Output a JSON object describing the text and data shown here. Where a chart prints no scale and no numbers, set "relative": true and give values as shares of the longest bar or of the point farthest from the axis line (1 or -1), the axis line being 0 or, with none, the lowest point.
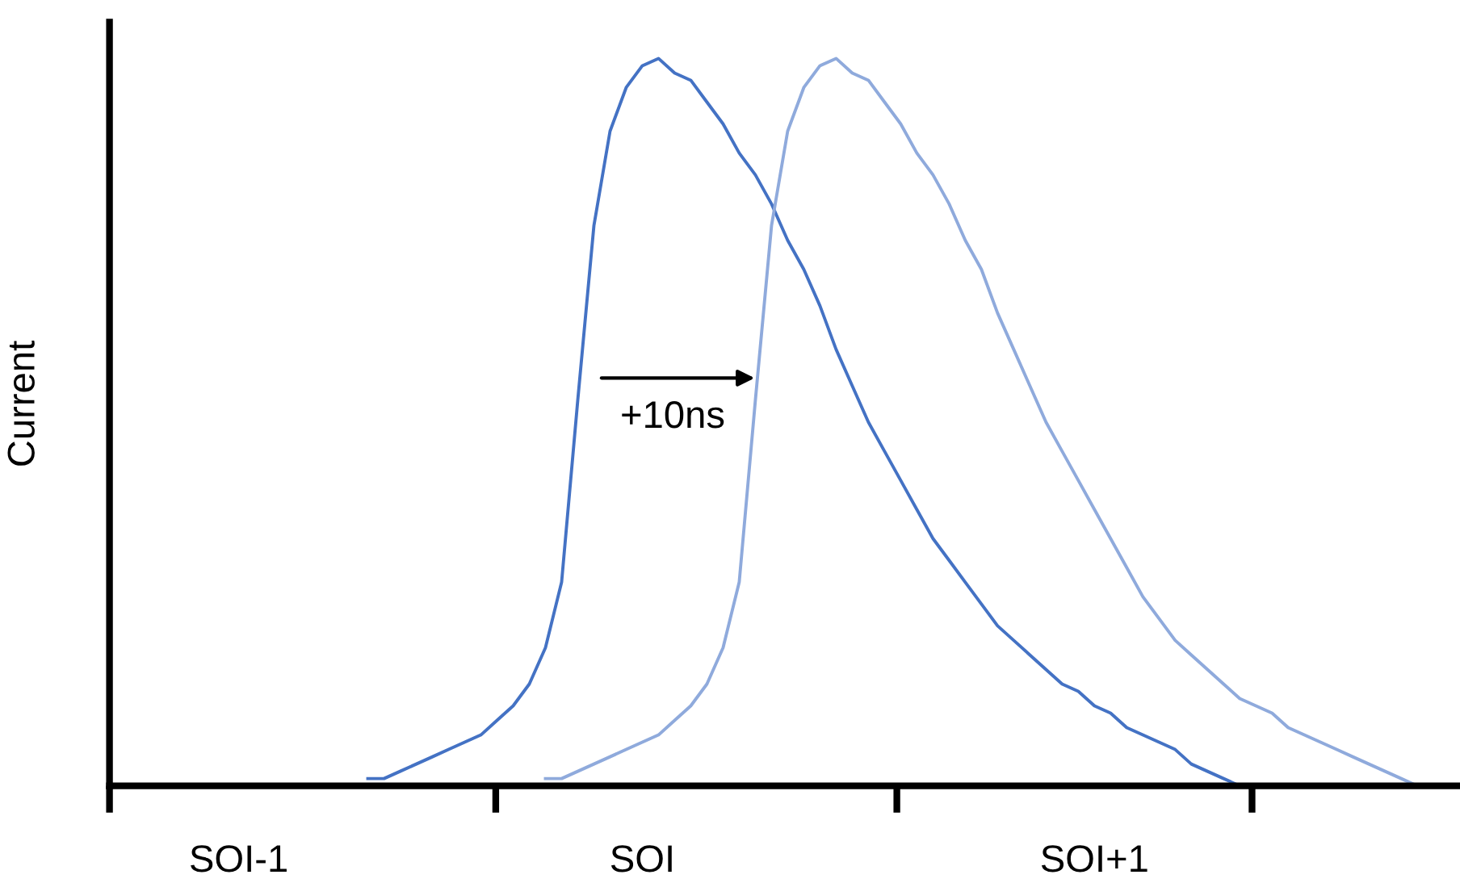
{
  "chart_data": {
    "type": "line",
    "relative": true,
    "ylabel": "Current",
    "categories": [
      null,
      null,
      null,
      null,
      null,
      null,
      null,
      null,
      "SOI-1",
      null,
      null,
      null,
      null,
      null,
      null,
      null,
      null,
      null,
      null,
      null,
      null,
      null,
      null,
      null,
      null,
      null,
      null,
      null,
      null,
      null,
      null,
      null,
      null,
      "SOI",
      null,
      null,
      null,
      null,
      null,
      null,
      null,
      null,
      null,
      null,
      null,
      null,
      null,
      null,
      null,
      null,
      null,
      null,
      null,
      null,
      null,
      null,
      null,
      null,
      null,
      null,
      null,
      "SOI+1",
      null,
      null,
      null,
      null,
      null,
      null,
      null,
      null,
      null,
      null,
      null,
      null,
      null,
      null,
      null,
      null,
      null,
      null,
      null,
      null,
      null
    ],
    "series": [
      {
        "color": "#4472c4",
        "values": [
          null,
          null,
          null,
          null,
          null,
          null,
          null,
          null,
          null,
          null,
          null,
          null,
          null,
          null,
          null,
          null,
          0.01,
          0.01,
          0.02,
          0.03,
          0.04,
          0.05,
          0.06,
          0.07,
          0.09,
          0.11,
          0.14,
          0.19,
          0.28,
          0.53,
          0.77,
          0.9,
          0.96,
          0.99,
          1.0,
          0.98,
          0.97,
          0.94,
          0.91,
          0.87,
          0.84,
          0.8,
          0.75,
          0.71,
          0.66,
          0.6,
          0.55,
          0.5,
          0.46,
          0.42,
          0.38,
          0.34,
          0.31,
          0.28,
          0.25,
          0.22,
          0.2,
          0.18,
          0.16,
          0.14,
          0.13,
          0.11,
          0.1,
          0.08,
          0.07,
          0.06,
          0.05,
          0.03,
          0.02,
          0.01,
          0.0,
          null,
          null,
          null,
          null,
          null,
          null,
          null,
          null,
          null,
          null,
          null,
          null
        ]
      },
      {
        "color": "#8faadc",
        "values": [
          null,
          null,
          null,
          null,
          null,
          null,
          null,
          null,
          null,
          null,
          null,
          null,
          null,
          null,
          null,
          null,
          null,
          null,
          null,
          null,
          null,
          null,
          null,
          null,
          null,
          null,
          null,
          0.01,
          0.01,
          0.02,
          0.03,
          0.04,
          0.05,
          0.06,
          0.07,
          0.09,
          0.11,
          0.14,
          0.19,
          0.28,
          0.53,
          0.77,
          0.9,
          0.96,
          0.99,
          1.0,
          0.98,
          0.97,
          0.94,
          0.91,
          0.87,
          0.84,
          0.8,
          0.75,
          0.71,
          0.65,
          0.6,
          0.55,
          0.5,
          0.46,
          0.42,
          0.38,
          0.34,
          0.3,
          0.26,
          0.23,
          0.2,
          0.18,
          0.16,
          0.14,
          0.12,
          0.11,
          0.1,
          0.08,
          0.07,
          0.06,
          0.05,
          0.04,
          0.03,
          0.02,
          0.01,
          0.0,
          null
        ]
      }
    ],
    "annotations": [
      "+10ns"
    ],
    "grid": false,
    "marker": "none",
    "line_style": "solid"
  }
}
